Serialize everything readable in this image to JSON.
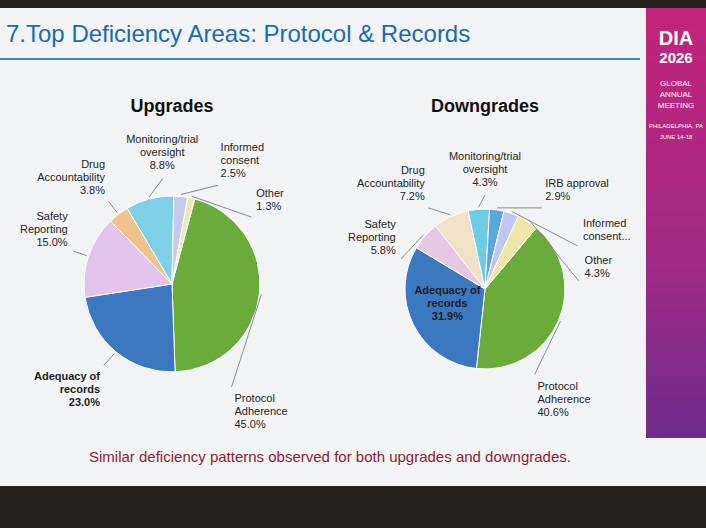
{
  "title": "7.Top Deficiency Areas: Protocol & Records",
  "footnote": "Similar deficiency patterns observed for both upgrades and downgrades.",
  "banner": [
    "DIA",
    "2026",
    "GLOBAL",
    "ANNUAL",
    "MEETING",
    "PHILADELPHIA, PA",
    "JUNE 14-18"
  ],
  "chart_data": [
    {
      "type": "pie",
      "title": "Upgrades",
      "categories": [
        "Protocol Adherence",
        "Adequacy of records",
        "Safety Reporting",
        "Drug Accountability",
        "Monitoring/trial oversight",
        "Informed consent",
        "Other"
      ],
      "values": [
        45.0,
        23.0,
        15.0,
        3.8,
        8.8,
        2.5,
        1.3
      ],
      "value_labels": [
        "45.0%",
        "23.0%",
        "15.0%",
        "3.8%",
        "8.8%",
        "2.5%",
        "1.3%"
      ],
      "colors": [
        "#6aab3c",
        "#3b78c0",
        "#e3c3ec",
        "#f2c28c",
        "#7dd0e8",
        "#c7caef",
        "#e6ecb2"
      ],
      "data_labels": true
    },
    {
      "type": "pie",
      "title": "Downgrades",
      "categories": [
        "Protocol Adherence",
        "Adequacy of records",
        "Safety Reporting",
        "Drug Accountability",
        "Monitoring/trial oversight",
        "IRB approval",
        "Informed consent...",
        "Other"
      ],
      "values": [
        40.6,
        31.9,
        5.8,
        7.2,
        4.3,
        2.9,
        3.0,
        4.3
      ],
      "value_labels": [
        "40.6%",
        "31.9%",
        "5.8%",
        "7.2%",
        "4.3%",
        "2.9%",
        null,
        "4.3%"
      ],
      "colors": [
        "#6aab3c",
        "#3b78c0",
        "#e8c6e6",
        "#efe2c6",
        "#6fcce5",
        "#5ba6dc",
        "#c1c7ee",
        "#ede7a8"
      ],
      "data_labels": true
    }
  ]
}
